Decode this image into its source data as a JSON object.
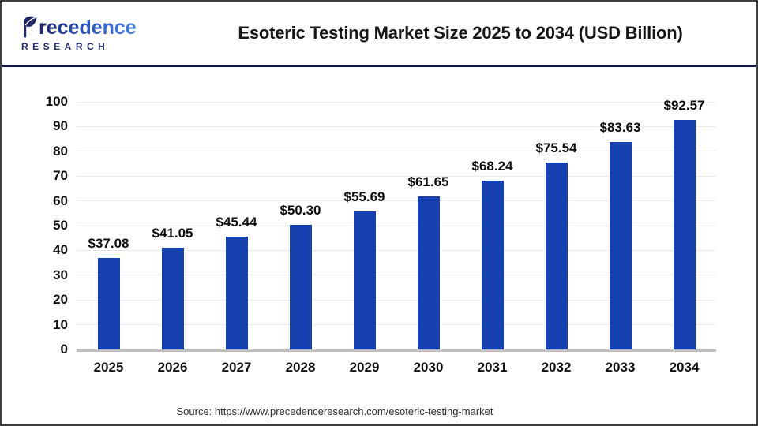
{
  "header": {
    "title": "Esoteric Testing Market Size 2025 to 2034 (USD Billion)",
    "brand": {
      "name": "Precedence",
      "name_rest": "recedence",
      "subtitle": "RESEARCH"
    }
  },
  "footer": {
    "source": "Source: https://www.precedenceresearch.com/esoteric-testing-market"
  },
  "colors": {
    "bar": "#1741ae",
    "separator_navy": "#121643",
    "grid": "#ececec",
    "axis": "#bfbfbf",
    "logo_dark": "#1d2566",
    "logo_light": "#477fdd"
  },
  "chart_data": {
    "type": "bar",
    "title": "Esoteric Testing Market Size 2025 to 2034 (USD Billion)",
    "unit": "USD Billion",
    "categories": [
      "2025",
      "2026",
      "2027",
      "2028",
      "2029",
      "2030",
      "2031",
      "2032",
      "2033",
      "2034"
    ],
    "values": [
      37.08,
      41.05,
      45.44,
      50.3,
      55.69,
      61.65,
      68.24,
      75.54,
      83.63,
      92.57
    ],
    "value_labels": [
      "$37.08",
      "$41.05",
      "$45.44",
      "$50.30",
      "$55.69",
      "$61.65",
      "$68.24",
      "$75.54",
      "$83.63",
      "$92.57"
    ],
    "xlabel": "",
    "ylabel": "",
    "ylim": [
      0,
      100
    ],
    "y_ticks": [
      0,
      10,
      20,
      30,
      40,
      50,
      60,
      70,
      80,
      90,
      100
    ],
    "grid": true,
    "legend": false
  }
}
